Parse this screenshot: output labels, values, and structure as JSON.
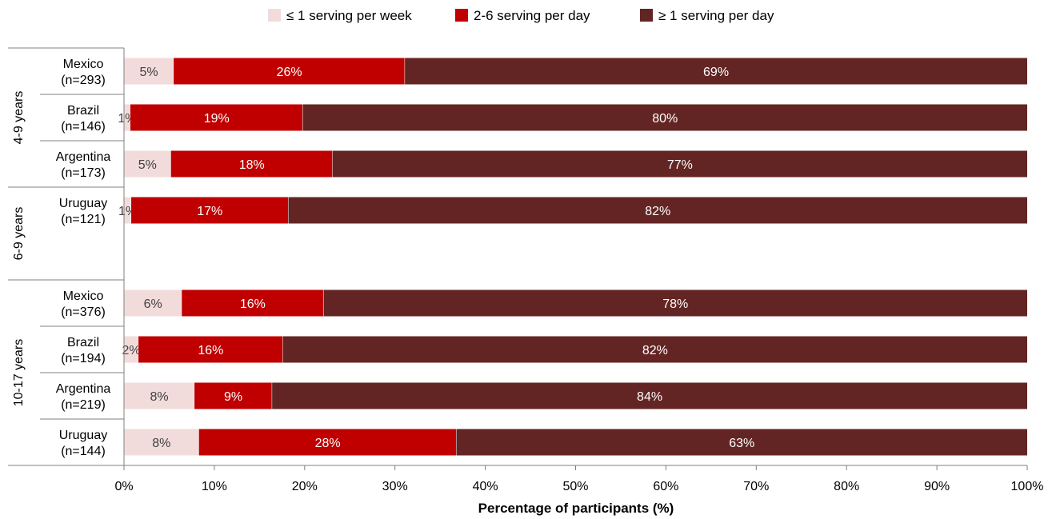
{
  "chart_data": {
    "type": "bar",
    "orientation": "horizontal",
    "stacked": true,
    "title": "",
    "xlabel": "Percentage of participants (%)",
    "ylabel": "",
    "xlim": [
      0,
      100
    ],
    "x_ticks": [
      "0%",
      "10%",
      "20%",
      "30%",
      "40%",
      "50%",
      "60%",
      "70%",
      "80%",
      "90%",
      "100%"
    ],
    "legend_position": "top",
    "grid": false,
    "groups": [
      {
        "label": "4-9 years",
        "rows": [
          0,
          1,
          2
        ]
      },
      {
        "label": "6-9 years",
        "rows": [
          3
        ]
      },
      {
        "label": "10-17 years",
        "rows": [
          4,
          5,
          6,
          7
        ]
      }
    ],
    "categories": [
      {
        "line1": "Mexico",
        "line2": "(n=293)"
      },
      {
        "line1": "Brazil",
        "line2": "(n=146)"
      },
      {
        "line1": "Argentina",
        "line2": "(n=173)"
      },
      {
        "line1": "Uruguay",
        "line2": "(n=121)"
      },
      {
        "line1": "Mexico",
        "line2": "(n=376)"
      },
      {
        "line1": "Brazil",
        "line2": "(n=194)"
      },
      {
        "line1": "Argentina",
        "line2": "(n=219)"
      },
      {
        "line1": "Uruguay",
        "line2": "(n=144)"
      }
    ],
    "series": [
      {
        "name": "≤ 1 serving per week",
        "color": "#f2dcdb",
        "label_color": "#404040",
        "values": [
          5.5,
          0.7,
          5.2,
          0.8,
          6.4,
          1.6,
          7.8,
          8.3
        ],
        "labels": [
          "5%",
          "1%",
          "5%",
          "1%",
          "6%",
          "2%",
          "8%",
          "8%"
        ]
      },
      {
        "name": "2-6 serving per day",
        "color": "#c00000",
        "label_color": "#ffffff",
        "values": [
          25.6,
          19.1,
          17.9,
          17.4,
          15.7,
          16.0,
          8.6,
          28.5
        ],
        "labels": [
          "26%",
          "19%",
          "18%",
          "17%",
          "16%",
          "16%",
          "9%",
          "28%"
        ]
      },
      {
        "name": "≥ 1 serving per day",
        "color": "#632523",
        "label_color": "#ffffff",
        "values": [
          68.9,
          80.2,
          76.9,
          81.8,
          77.9,
          82.4,
          83.6,
          63.2
        ],
        "labels": [
          "69%",
          "80%",
          "77%",
          "82%",
          "78%",
          "82%",
          "84%",
          "63%"
        ]
      }
    ]
  }
}
